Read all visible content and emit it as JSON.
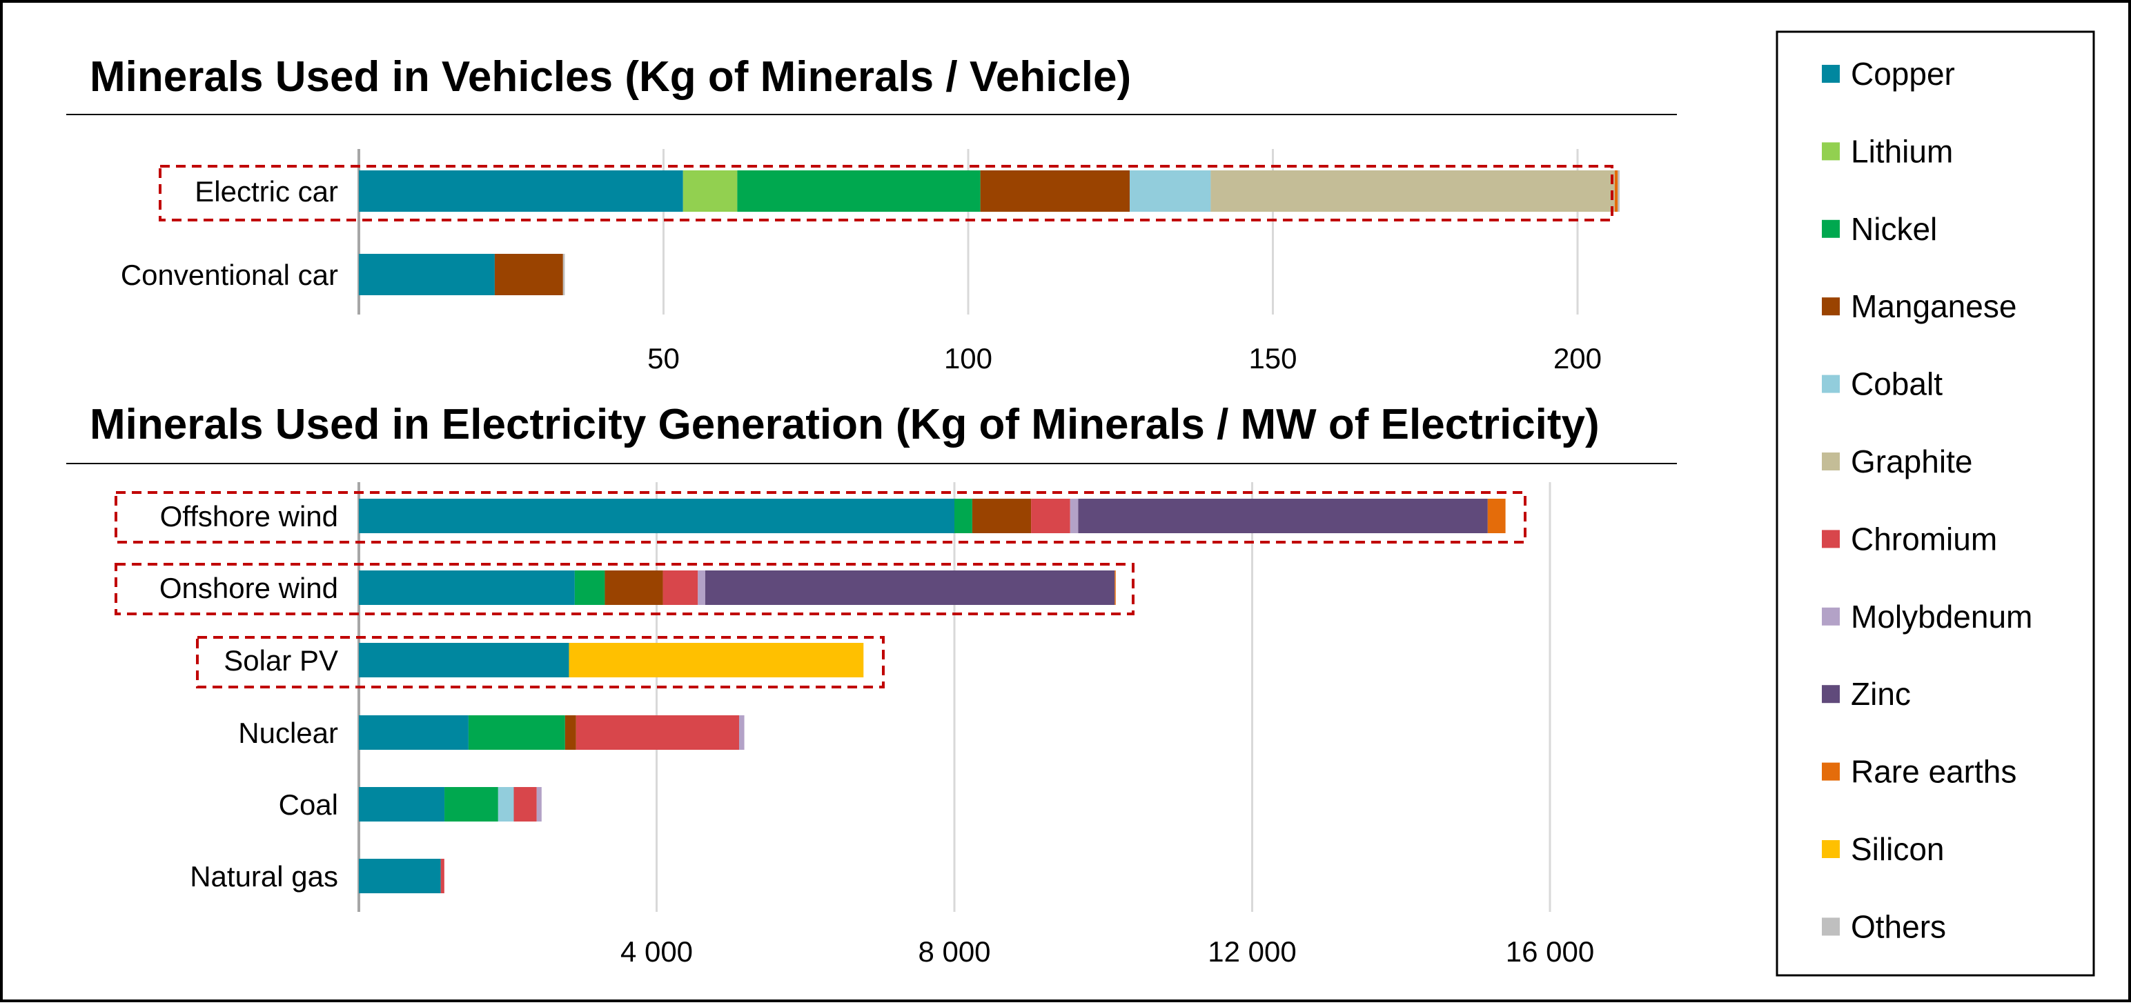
{
  "chart_data": [
    {
      "type": "bar",
      "orientation": "horizontal",
      "stacked": true,
      "title": "Minerals Used in Vehicles (Kg of Minerals / Vehicle)",
      "categories": [
        "Electric car",
        "Conventional car"
      ],
      "highlighted": [
        "Electric car"
      ],
      "xlim": [
        0,
        210
      ],
      "xticks": [
        50,
        100,
        150,
        200
      ],
      "tick_labels": [
        "50",
        "100",
        "150",
        "200"
      ],
      "grid": true,
      "series": [
        {
          "name": "Copper",
          "values": [
            53.2,
            22.3
          ]
        },
        {
          "name": "Lithium",
          "values": [
            8.9,
            0
          ]
        },
        {
          "name": "Nickel",
          "values": [
            39.9,
            0
          ]
        },
        {
          "name": "Manganese",
          "values": [
            24.5,
            11.2
          ]
        },
        {
          "name": "Cobalt",
          "values": [
            13.3,
            0
          ]
        },
        {
          "name": "Graphite",
          "values": [
            66.3,
            0
          ]
        },
        {
          "name": "Chromium",
          "values": [
            0,
            0
          ]
        },
        {
          "name": "Molybdenum",
          "values": [
            0,
            0
          ]
        },
        {
          "name": "Zinc",
          "values": [
            0,
            0
          ]
        },
        {
          "name": "Rare earths",
          "values": [
            0.5,
            0
          ]
        },
        {
          "name": "Silicon",
          "values": [
            0,
            0
          ]
        },
        {
          "name": "Others",
          "values": [
            0.3,
            0.3
          ]
        }
      ]
    },
    {
      "type": "bar",
      "orientation": "horizontal",
      "stacked": true,
      "title": "Minerals Used in Electricity Generation (Kg of Minerals / MW of Electricity)",
      "categories": [
        "Offshore wind",
        "Onshore wind",
        "Solar PV",
        "Nuclear",
        "Coal",
        "Natural gas"
      ],
      "highlighted": [
        "Offshore wind",
        "Onshore wind",
        "Solar PV"
      ],
      "xlim": [
        0,
        17000
      ],
      "xticks": [
        4000,
        8000,
        12000,
        16000
      ],
      "tick_labels": [
        "4 000",
        "8 000",
        "12 000",
        "16 000"
      ],
      "grid": true,
      "series": [
        {
          "name": "Copper",
          "values": [
            8000,
            2900,
            2822,
            1473,
            1150,
            1100
          ]
        },
        {
          "name": "Lithium",
          "values": [
            0,
            0,
            0,
            0,
            0,
            0
          ]
        },
        {
          "name": "Nickel",
          "values": [
            240,
            404,
            1,
            1297,
            721,
            0
          ]
        },
        {
          "name": "Manganese",
          "values": [
            790,
            780,
            0,
            148,
            0,
            0
          ]
        },
        {
          "name": "Cobalt",
          "values": [
            0,
            0,
            0,
            0,
            210,
            0
          ]
        },
        {
          "name": "Graphite",
          "values": [
            0,
            0,
            0,
            0,
            0,
            0
          ]
        },
        {
          "name": "Chromium",
          "values": [
            525,
            470,
            0,
            2190,
            308,
            48
          ]
        },
        {
          "name": "Molybdenum",
          "values": [
            109,
            99,
            0,
            70,
            66,
            0
          ]
        },
        {
          "name": "Zinc",
          "values": [
            5500,
            5500,
            0,
            0,
            0,
            0
          ]
        },
        {
          "name": "Rare earths",
          "values": [
            239,
            14,
            0,
            0,
            0,
            0
          ]
        },
        {
          "name": "Silicon",
          "values": [
            0,
            0,
            3956,
            0,
            0,
            0
          ]
        },
        {
          "name": "Others",
          "values": [
            0,
            0,
            0,
            0,
            0,
            0
          ]
        }
      ]
    }
  ],
  "legend": {
    "placement": "right",
    "items": [
      {
        "label": "Copper",
        "color": "#00879f"
      },
      {
        "label": "Lithium",
        "color": "#92d050"
      },
      {
        "label": "Nickel",
        "color": "#00a84f"
      },
      {
        "label": "Manganese",
        "color": "#9a4300"
      },
      {
        "label": "Cobalt",
        "color": "#92cddc"
      },
      {
        "label": "Graphite",
        "color": "#c4bd97"
      },
      {
        "label": "Chromium",
        "color": "#d8464b"
      },
      {
        "label": "Molybdenum",
        "color": "#b3a2c7"
      },
      {
        "label": "Zinc",
        "color": "#604a7b"
      },
      {
        "label": "Rare earths",
        "color": "#e46c0a"
      },
      {
        "label": "Silicon",
        "color": "#ffc000"
      },
      {
        "label": "Others",
        "color": "#bfbfbf"
      }
    ]
  },
  "colors": {
    "highlight_box": "#c00000",
    "grid": "#d9d9d9",
    "axis": "#a6a6a6"
  }
}
